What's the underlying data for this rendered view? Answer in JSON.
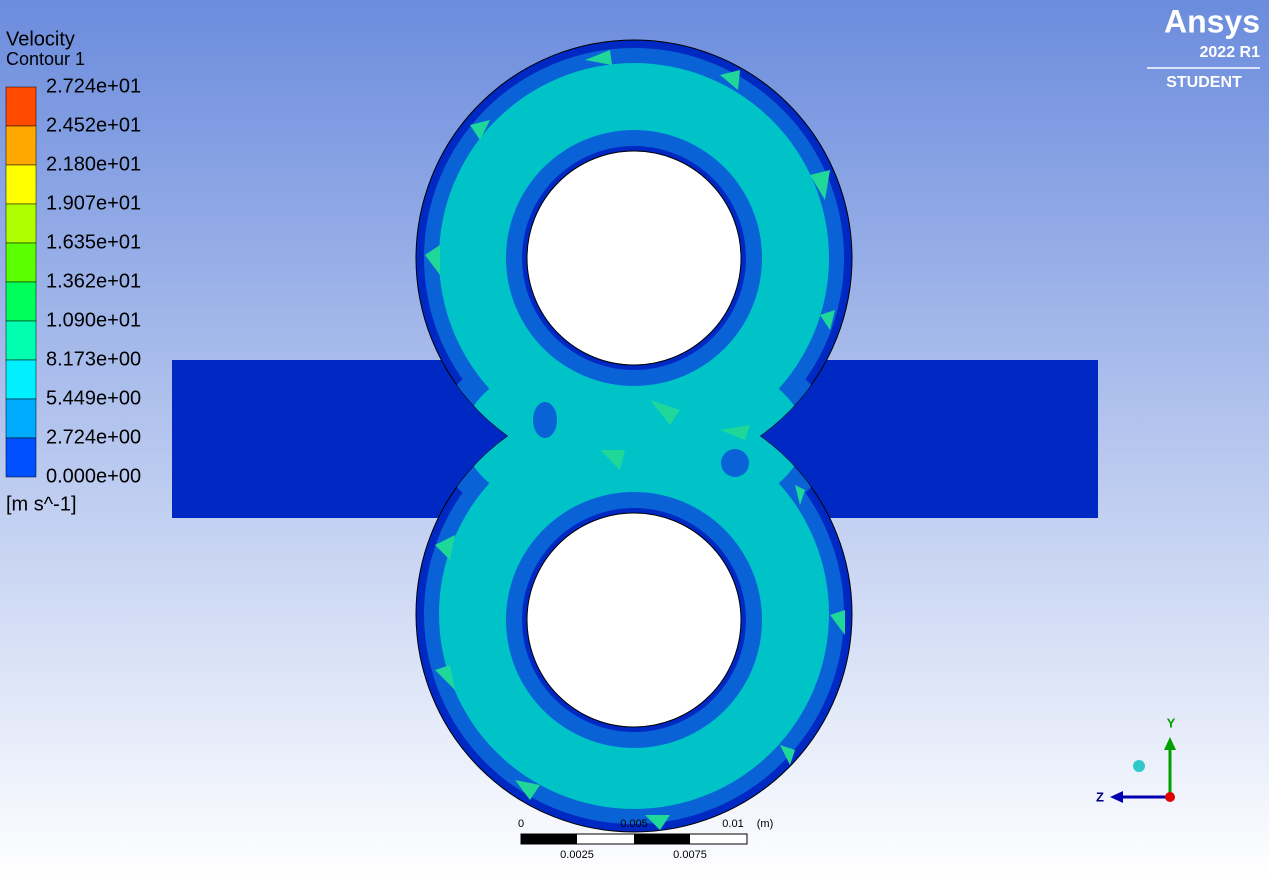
{
  "legend": {
    "title": "Velocity",
    "subtitle": "Contour 1",
    "labels": [
      "2.724e+01",
      "2.452e+01",
      "2.180e+01",
      "1.907e+01",
      "1.635e+01",
      "1.362e+01",
      "1.090e+01",
      "8.173e+00",
      "5.449e+00",
      "2.724e+00",
      "0.000e+00"
    ],
    "unit": "[m s^-1]"
  },
  "brand": {
    "name": "Ansys",
    "version": "2022 R1",
    "edition": "STUDENT"
  },
  "scale_bar": {
    "top_labels": [
      "0",
      "0.005",
      "0.01"
    ],
    "unit": "(m)",
    "bottom_labels": [
      "0.0025",
      "0.0075"
    ]
  },
  "triad": {
    "y": "Y",
    "z": "Z"
  }
}
